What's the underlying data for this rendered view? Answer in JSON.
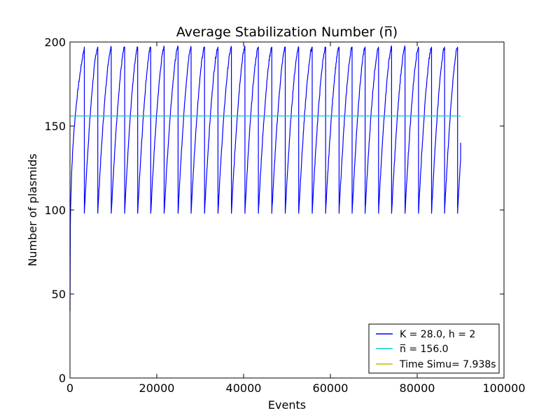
{
  "chart_data": {
    "type": "line",
    "title": "Average Stabilization Number (n̅)",
    "xlabel": "Events",
    "ylabel": "Number of plasmids",
    "xlim": [
      0,
      100000
    ],
    "ylim": [
      0,
      200
    ],
    "x_ticks": [
      0,
      20000,
      40000,
      60000,
      80000,
      100000
    ],
    "y_ticks": [
      0,
      50,
      100,
      150,
      200
    ],
    "grid": false,
    "legend_position": "lower-right",
    "series": [
      {
        "name": "K = 28.0, h = 2",
        "color": "#0000ff",
        "style": "sawtooth",
        "start": {
          "x": 0,
          "y": 40
        },
        "peak": 197,
        "trough": 98,
        "drop_events": [
          3300,
          6400,
          9500,
          12600,
          15600,
          18600,
          21700,
          24900,
          27900,
          31000,
          34100,
          37200,
          40300,
          43400,
          46500,
          49600,
          52700,
          55800,
          58900,
          62000,
          65000,
          68000,
          71100,
          74100,
          77200,
          80300,
          83300,
          86300,
          89300
        ],
        "end": {
          "x": 90000,
          "y": 140
        }
      },
      {
        "name": "n̅ = 156.0",
        "color": "#00ced1",
        "x": [
          0,
          90000
        ],
        "y": [
          156,
          156
        ]
      },
      {
        "name": "Time Simu= 7.938s",
        "color": "#bfbf00",
        "x": [],
        "y": []
      }
    ]
  }
}
